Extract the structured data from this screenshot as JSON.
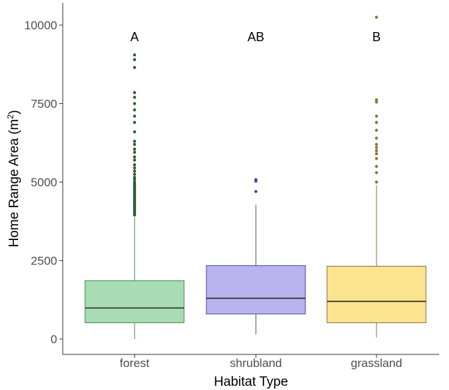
{
  "chart_data": {
    "type": "box",
    "xlabel": "Habitat Type",
    "ylabel_main": "Home Range Area (m",
    "ylabel_sup": "2",
    "ylabel_close": ")",
    "ylim": [
      -400,
      10500
    ],
    "yticks": [
      0,
      2500,
      5000,
      7500,
      10000
    ],
    "ytick_labels": [
      "0",
      "2500",
      "5000",
      "7500",
      "10000"
    ],
    "categories": [
      "forest",
      "shrubland",
      "grassland"
    ],
    "boxes": [
      {
        "name": "forest",
        "letter": "A",
        "whisker_low": 0,
        "q1": 520,
        "median": 990,
        "q3": 1860,
        "whisker_high": 3880,
        "outliers": [
          3950,
          4000,
          4050,
          4100,
          4150,
          4200,
          4250,
          4300,
          4350,
          4400,
          4450,
          4500,
          4550,
          4600,
          4650,
          4700,
          4750,
          4800,
          4850,
          4900,
          4950,
          5000,
          5080,
          5150,
          5250,
          5350,
          5450,
          5550,
          5700,
          5800,
          5950,
          6050,
          6200,
          6300,
          6600,
          6900,
          7100,
          7300,
          7500,
          7700,
          7850,
          8650,
          8900,
          9050
        ],
        "fill": "#a8dcb2",
        "stroke": "#3f8a4f",
        "outlier_color": "#2e5f35"
      },
      {
        "name": "shrubland",
        "letter": "AB",
        "whisker_low": 150,
        "q1": 800,
        "median": 1300,
        "q3": 2340,
        "whisker_high": 4280,
        "outliers": [
          4700,
          5030,
          5080
        ],
        "fill": "#b9b3ef",
        "stroke": "#4a4790",
        "outlier_color": "#4a4790"
      },
      {
        "name": "grassland",
        "letter": "B",
        "whisker_low": 50,
        "q1": 520,
        "median": 1200,
        "q3": 2320,
        "whisker_high": 4900,
        "outliers": [
          5000,
          5300,
          5500,
          5750,
          5900,
          6000,
          6100,
          6200,
          6400,
          6650,
          6900,
          7100,
          7550,
          7620,
          10250
        ],
        "fill": "#fbe38f",
        "stroke": "#857040",
        "outlier_color": "#8a7740"
      }
    ]
  }
}
